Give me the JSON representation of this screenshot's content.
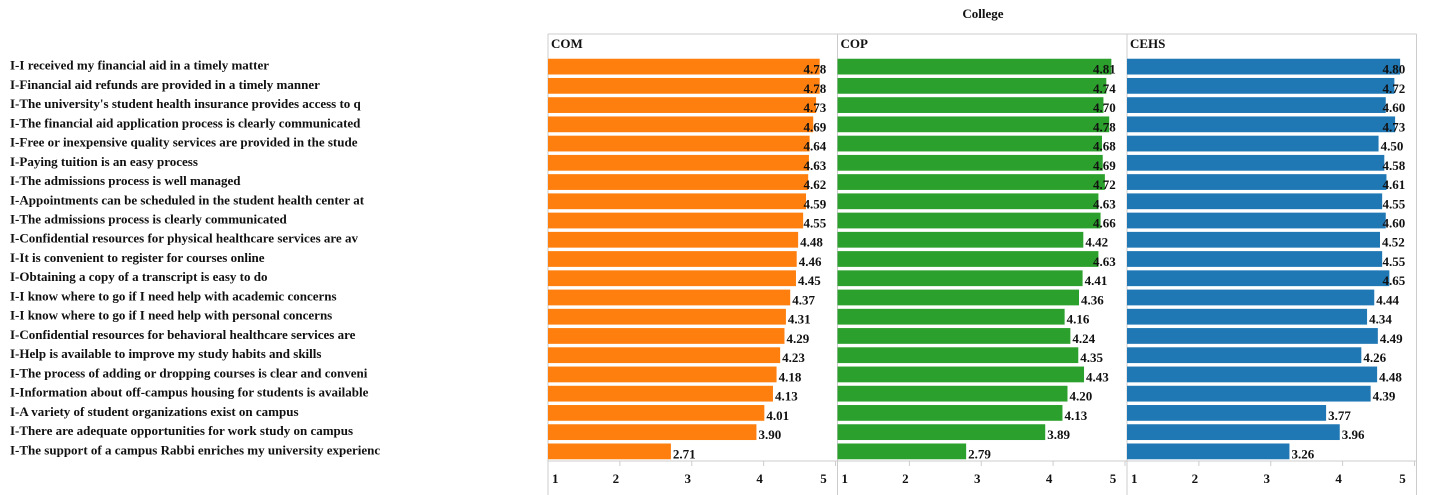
{
  "chart_data": {
    "type": "bar",
    "title": "College",
    "categories": [
      "I-I received my financial aid in a timely matter",
      "I-Financial aid refunds are provided in a timely manner",
      "I-The university's student health insurance provides access to q",
      "I-The financial aid application process is clearly communicated",
      "I-Free or inexpensive quality services are provided in the stude",
      "I-Paying tuition is an easy process",
      "I-The admissions process is well managed",
      "I-Appointments can be scheduled in the student health center at",
      "I-The admissions process is clearly communicated",
      "I-Confidential resources for physical healthcare services are av",
      "I-It is convenient to register for courses online",
      "I-Obtaining a copy of a transcript is easy to do",
      "I-I know where to go if I need help with academic concerns",
      "I-I know where to go if I need help with personal concerns",
      "I-Confidential resources for behavioral healthcare services are",
      "I-Help is available to improve my study habits and skills",
      "I-The process of adding or dropping courses is clear and conveni",
      "I-Information about off-campus housing for students is available",
      "I-A variety of student organizations exist on campus",
      "I-There are adequate opportunities for work study on campus",
      "I-The support of a campus Rabbi enriches my university experienc"
    ],
    "series": [
      {
        "name": "COM",
        "color": "#ff7f0e",
        "values": [
          4.78,
          4.78,
          4.73,
          4.69,
          4.64,
          4.63,
          4.62,
          4.59,
          4.55,
          4.48,
          4.46,
          4.45,
          4.37,
          4.31,
          4.29,
          4.23,
          4.18,
          4.13,
          4.01,
          3.9,
          2.71
        ],
        "value_labels": [
          "4.78",
          "4.78",
          "4.73",
          "4.69",
          "4.64",
          "4.63",
          "4.62",
          "4.59",
          "4.55",
          "4.48",
          "4.46",
          "4.45",
          "4.37",
          "4.31",
          "4.29",
          "4.23",
          "4.18",
          "4.13",
          "4.01",
          "3.90",
          "2.71"
        ]
      },
      {
        "name": "COP",
        "color": "#2ca02c",
        "values": [
          4.81,
          4.74,
          4.7,
          4.78,
          4.68,
          4.69,
          4.72,
          4.63,
          4.66,
          4.42,
          4.63,
          4.41,
          4.36,
          4.16,
          4.24,
          4.35,
          4.43,
          4.2,
          4.13,
          3.89,
          2.79
        ],
        "value_labels": [
          "4.81",
          "4.74",
          "4.70",
          "4.78",
          "4.68",
          "4.69",
          "4.72",
          "4.63",
          "4.66",
          "4.42",
          "4.63",
          "4.41",
          "4.36",
          "4.16",
          "4.24",
          "4.35",
          "4.43",
          "4.20",
          "4.13",
          "3.89",
          "2.79"
        ]
      },
      {
        "name": "CEHS",
        "color": "#1f77b4",
        "values": [
          4.8,
          4.72,
          4.6,
          4.73,
          4.5,
          4.58,
          4.61,
          4.55,
          4.6,
          4.52,
          4.55,
          4.65,
          4.44,
          4.34,
          4.49,
          4.26,
          4.48,
          4.39,
          3.77,
          3.96,
          3.26
        ],
        "value_labels": [
          "4.80",
          "4.72",
          "4.60",
          "4.73",
          "4.50",
          "4.58",
          "4.61",
          "4.55",
          "4.60",
          "4.52",
          "4.55",
          "4.65",
          "4.44",
          "4.34",
          "4.49",
          "4.26",
          "4.48",
          "4.39",
          "3.77",
          "3.96",
          "3.26"
        ]
      }
    ],
    "xlim": [
      1,
      5
    ],
    "xticks": [
      1,
      2,
      3,
      4,
      5
    ]
  }
}
